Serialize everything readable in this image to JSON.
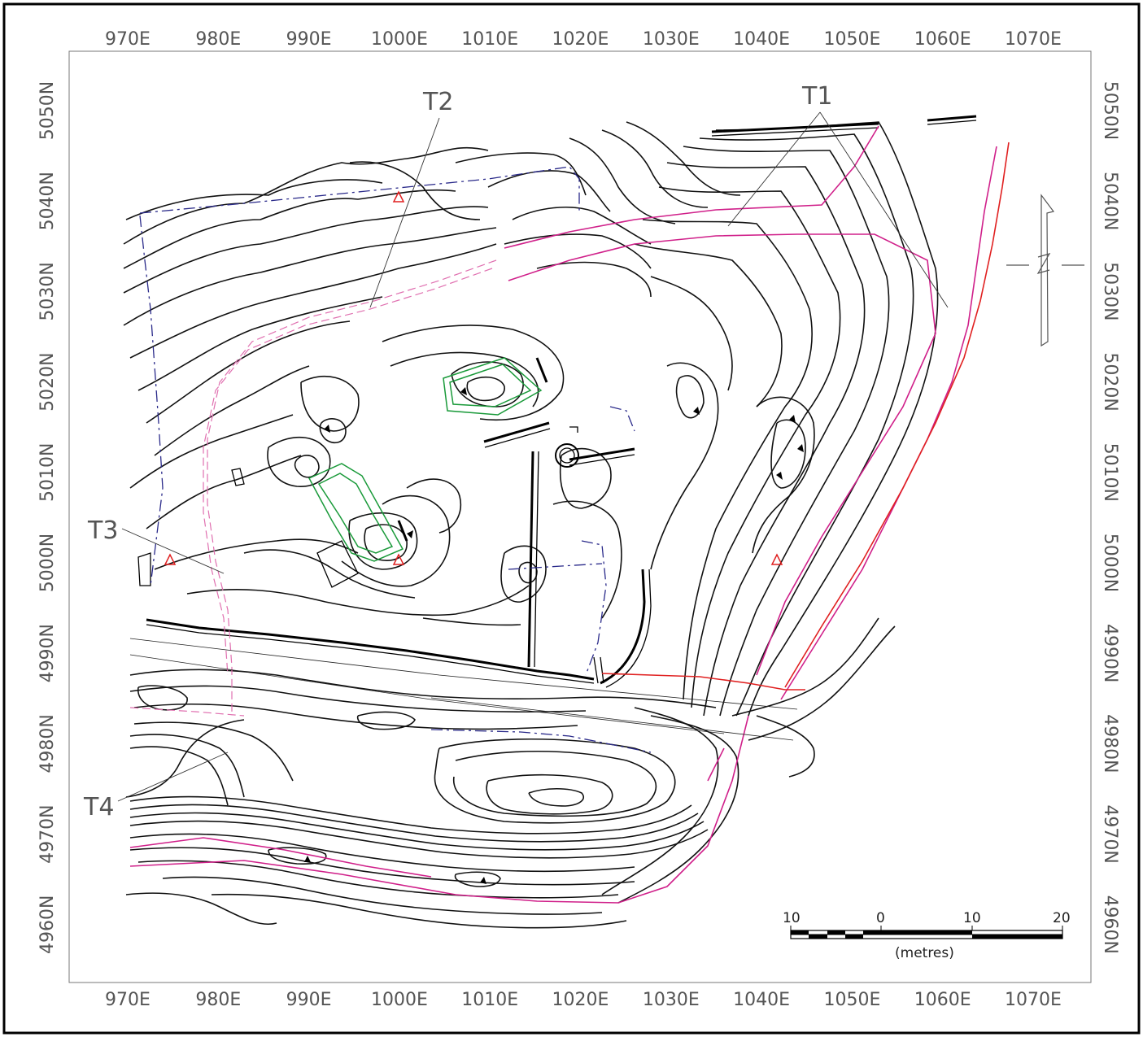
{
  "colors": {
    "contour": "#111111",
    "label": "#555555",
    "magenta": "#d0208a",
    "red": "#e02020",
    "green": "#1a9a3a",
    "blue_dash": "#2a2a8a",
    "pink_dash": "#e070b0"
  },
  "easting_labels": [
    "970E",
    "980E",
    "990E",
    "1000E",
    "1010E",
    "1020E",
    "1030E",
    "1040E",
    "1050E",
    "1060E",
    "1070E"
  ],
  "northing_labels": [
    "5050N",
    "5040N",
    "5030N",
    "5020N",
    "5010N",
    "5000N",
    "4990N",
    "4980N",
    "4970N",
    "4960N"
  ],
  "trench_labels": {
    "t1": "T1",
    "t2": "T2",
    "t3": "T3",
    "t4": "T4"
  },
  "scale_bar": {
    "ticks": [
      "10",
      "0",
      "10",
      "20"
    ],
    "unit": "(metres)"
  },
  "symbols": {
    "datum_triangle": "survey-datum-icon",
    "north_arrow": "north-arrow-icon",
    "depression_tick": "depression-marker-icon"
  }
}
